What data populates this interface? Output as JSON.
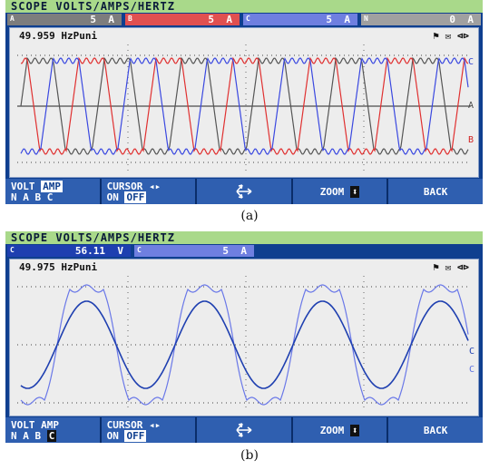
{
  "a": {
    "title": "SCOPE VOLTS/AMPS/HERTZ",
    "channels": [
      {
        "tag": "A",
        "value": "5",
        "unit": "A",
        "color": "#7d7d7d"
      },
      {
        "tag": "B",
        "value": "5",
        "unit": "A",
        "color": "#e05050"
      },
      {
        "tag": "C",
        "value": "5",
        "unit": "A",
        "color": "#6f7fe0"
      },
      {
        "tag": "N",
        "value": "0",
        "unit": "A",
        "color": "#a0a0a0"
      }
    ],
    "readout": "49.959 HzPuni",
    "status": "⚑ ✉ ⊲⊳",
    "trace_labels": {
      "c": "C",
      "a": "A",
      "b": "B"
    },
    "keys": {
      "volt_amp": {
        "line1": "VOLT",
        "sel": "AMP",
        "line2": "N A B C"
      },
      "cursor": {
        "line1": "CURSOR ◂▸",
        "on": "ON",
        "off": "OFF"
      },
      "zoom": "ZOOM",
      "back": "BACK"
    },
    "caption": "(a)"
  },
  "b": {
    "title": "SCOPE VOLTS/AMPS/HERTZ",
    "channels": [
      {
        "tag": "C",
        "value": "56.11",
        "unit": "V",
        "color": "#1e3fb0"
      },
      {
        "tag": "C",
        "value": "5",
        "unit": "A",
        "color": "#6f7fe0"
      }
    ],
    "readout": "49.975 HzPuni",
    "status": "⚑ ✉ ⊲⊳",
    "trace_labels": {
      "c1": "C",
      "c2": "C"
    },
    "keys": {
      "volt_amp": {
        "line1": "VOLT AMP",
        "line2": "N A B",
        "sel": "C"
      },
      "cursor": {
        "line1": "CURSOR ◂▸",
        "on": "ON",
        "off": "OFF"
      },
      "zoom": "ZOOM",
      "back": "BACK"
    },
    "caption": "(b)"
  }
}
